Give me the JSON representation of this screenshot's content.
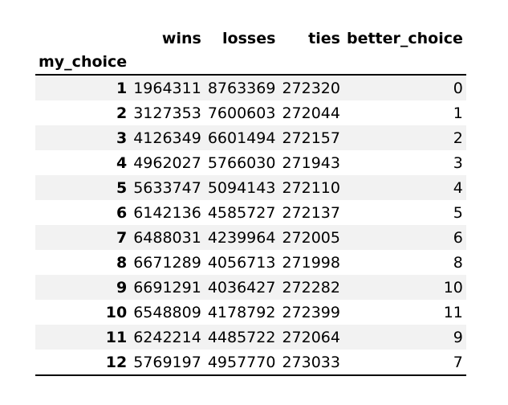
{
  "table": {
    "index_name": "my_choice",
    "columns": [
      "wins",
      "losses",
      "ties",
      "better_choice"
    ],
    "rows": [
      {
        "index": "1",
        "wins": "1964311",
        "losses": "8763369",
        "ties": "272320",
        "better_choice": "0"
      },
      {
        "index": "2",
        "wins": "3127353",
        "losses": "7600603",
        "ties": "272044",
        "better_choice": "1"
      },
      {
        "index": "3",
        "wins": "4126349",
        "losses": "6601494",
        "ties": "272157",
        "better_choice": "2"
      },
      {
        "index": "4",
        "wins": "4962027",
        "losses": "5766030",
        "ties": "271943",
        "better_choice": "3"
      },
      {
        "index": "5",
        "wins": "5633747",
        "losses": "5094143",
        "ties": "272110",
        "better_choice": "4"
      },
      {
        "index": "6",
        "wins": "6142136",
        "losses": "4585727",
        "ties": "272137",
        "better_choice": "5"
      },
      {
        "index": "7",
        "wins": "6488031",
        "losses": "4239964",
        "ties": "272005",
        "better_choice": "6"
      },
      {
        "index": "8",
        "wins": "6671289",
        "losses": "4056713",
        "ties": "271998",
        "better_choice": "8"
      },
      {
        "index": "9",
        "wins": "6691291",
        "losses": "4036427",
        "ties": "272282",
        "better_choice": "10"
      },
      {
        "index": "10",
        "wins": "6548809",
        "losses": "4178792",
        "ties": "272399",
        "better_choice": "11"
      },
      {
        "index": "11",
        "wins": "6242214",
        "losses": "4485722",
        "ties": "272064",
        "better_choice": "9"
      },
      {
        "index": "12",
        "wins": "5769197",
        "losses": "4957770",
        "ties": "273033",
        "better_choice": "7"
      }
    ]
  }
}
